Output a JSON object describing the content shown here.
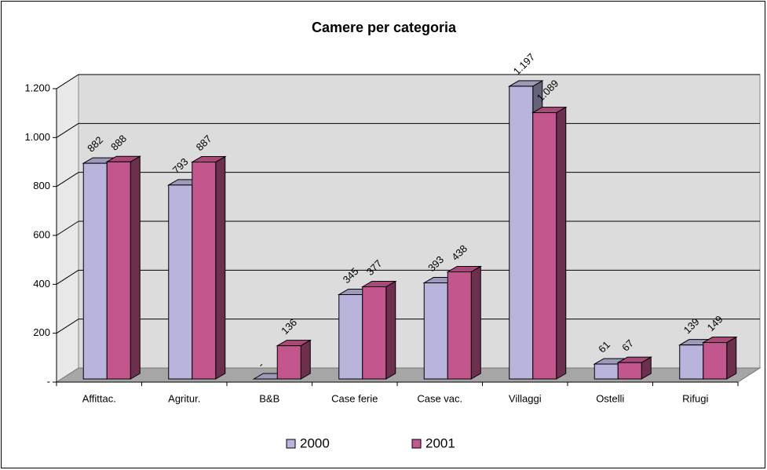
{
  "chart_data": {
    "type": "bar3d",
    "title": "Camere per categoria",
    "categories": [
      "Affittac.",
      "Agritur.",
      "B&B",
      "Case ferie",
      "Case vac.",
      "Villaggi",
      "Ostelli",
      "Rifugi"
    ],
    "series": [
      {
        "name": "2000",
        "color": "#b8b4dc",
        "values": [
          882,
          793,
          0,
          345,
          393,
          1197,
          61,
          139
        ],
        "value_labels": [
          "882",
          "793",
          "-",
          "345",
          "393",
          "1.197",
          "61",
          "139"
        ]
      },
      {
        "name": "2001",
        "color": "#c4568e",
        "values": [
          888,
          887,
          136,
          377,
          438,
          1089,
          67,
          149
        ],
        "value_labels": [
          "888",
          "887",
          "136",
          "377",
          "438",
          "1.089",
          "67",
          "149"
        ]
      }
    ],
    "ylim": [
      0,
      1200
    ],
    "yticks": [
      {
        "value": 0,
        "label": "-"
      },
      200,
      400,
      600,
      800,
      {
        "value": 1000,
        "label": "1.000"
      },
      {
        "value": 1200,
        "label": "1.200"
      }
    ],
    "grid": true,
    "legend": "bottom"
  }
}
